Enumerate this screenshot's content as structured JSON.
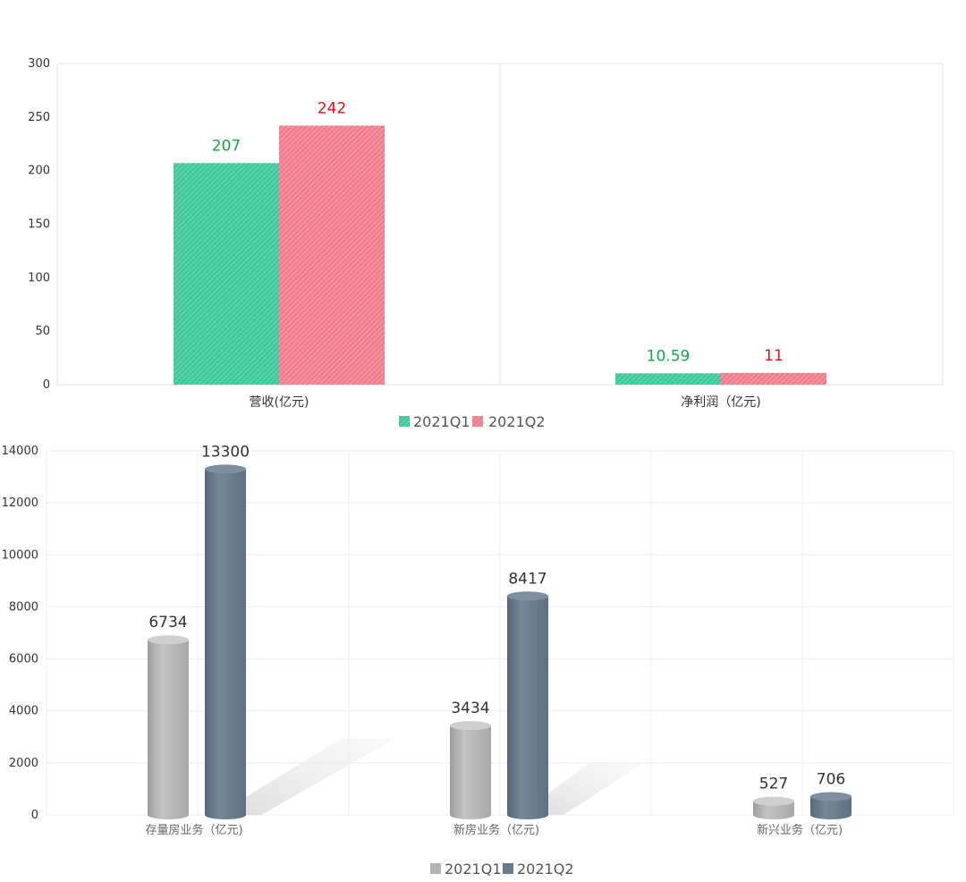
{
  "chart_data": [
    {
      "type": "bar",
      "categories": [
        "营收(亿元)",
        "净利润（亿元)"
      ],
      "series": [
        {
          "name": "2021Q1",
          "values": [
            207,
            10.59
          ],
          "color": "#3fc99a",
          "label_color": "#1aa34a"
        },
        {
          "name": "2021Q2",
          "values": [
            242,
            11
          ],
          "color": "#ef7d8c",
          "label_color": "#d9141a"
        }
      ],
      "data_labels": [
        [
          "207",
          "10.59"
        ],
        [
          "242",
          "11"
        ]
      ],
      "ylim": [
        0,
        300
      ],
      "yticks": [
        0,
        50,
        100,
        150,
        200,
        250,
        300
      ],
      "ytick_labels": [
        "0",
        "50",
        "100",
        "150",
        "200",
        "250",
        "300"
      ],
      "legend_position": "bottom",
      "grid": false
    },
    {
      "type": "bar",
      "categories": [
        "存量房业务（亿元)",
        "新房业务（亿元)",
        "新兴业务（亿元)"
      ],
      "series": [
        {
          "name": "2021Q1",
          "values": [
            6734,
            3434,
            527
          ],
          "color": "#b3b3b3"
        },
        {
          "name": "2021Q2",
          "values": [
            13300,
            8417,
            706
          ],
          "color": "#667a8a"
        }
      ],
      "data_labels": [
        [
          "6734",
          "3434",
          "527"
        ],
        [
          "13300",
          "8417",
          "706"
        ]
      ],
      "ylim": [
        0,
        14000
      ],
      "yticks": [
        0,
        2000,
        4000,
        6000,
        8000,
        10000,
        12000,
        14000
      ],
      "ytick_labels": [
        "0",
        "2000",
        "4000",
        "6000",
        "8000",
        "10000",
        "12000",
        "14000"
      ],
      "legend_position": "bottom",
      "grid": true
    }
  ]
}
